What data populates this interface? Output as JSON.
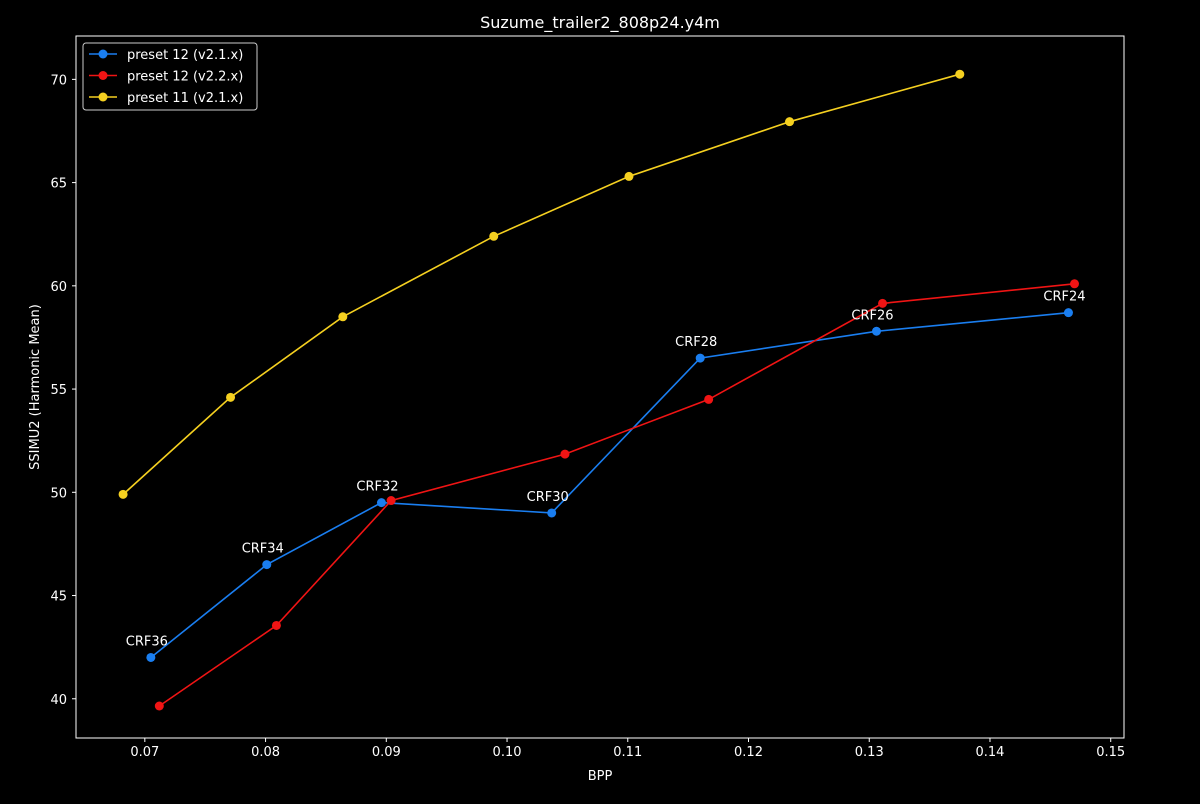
{
  "chart_data": {
    "type": "line",
    "title": "Suzume_trailer2_808p24.y4m",
    "xlabel": "BPP",
    "ylabel": "SSIMU2 (Harmonic Mean)",
    "xlim": [
      0.0643,
      0.1511
    ],
    "ylim": [
      38.1,
      72.1
    ],
    "xticks": [
      0.07,
      0.08,
      0.09,
      0.1,
      0.11,
      0.12,
      0.13,
      0.14,
      0.15
    ],
    "xtick_labels": [
      "0.07",
      "0.08",
      "0.09",
      "0.10",
      "0.11",
      "0.12",
      "0.13",
      "0.14",
      "0.15"
    ],
    "yticks": [
      40,
      45,
      50,
      55,
      60,
      65,
      70
    ],
    "ytick_labels": [
      "40",
      "45",
      "50",
      "55",
      "60",
      "65",
      "70"
    ],
    "grid": false,
    "legend_position": "top-left",
    "background": "#000000",
    "series": [
      {
        "name": "preset 12 (v2.1.x)",
        "color": "#1a7ef0",
        "x": [
          0.0705,
          0.0801,
          0.0896,
          0.1037,
          0.116,
          0.1306,
          0.1465
        ],
        "y": [
          42.0,
          46.5,
          49.5,
          49.0,
          56.5,
          57.8,
          58.7
        ]
      },
      {
        "name": "preset 12 (v2.2.x)",
        "color": "#f01414",
        "x": [
          0.0712,
          0.0809,
          0.0904,
          0.1048,
          0.1167,
          0.1311,
          0.147
        ],
        "y": [
          39.65,
          43.55,
          49.6,
          51.85,
          54.5,
          59.15,
          60.1
        ]
      },
      {
        "name": "preset 11 (v2.1.x)",
        "color": "#f5d020",
        "x": [
          0.0682,
          0.0771,
          0.0864,
          0.0989,
          0.1101,
          0.1234,
          0.1375
        ],
        "y": [
          49.9,
          54.6,
          58.5,
          62.4,
          65.3,
          67.95,
          70.25
        ]
      }
    ],
    "annotations": [
      {
        "text": "CRF36",
        "x": 0.0705,
        "y": 42.0
      },
      {
        "text": "CRF34",
        "x": 0.0801,
        "y": 46.5
      },
      {
        "text": "CRF32",
        "x": 0.0896,
        "y": 49.5
      },
      {
        "text": "CRF30",
        "x": 0.1037,
        "y": 49.0
      },
      {
        "text": "CRF28",
        "x": 0.116,
        "y": 56.5
      },
      {
        "text": "CRF26",
        "x": 0.1306,
        "y": 57.8
      },
      {
        "text": "CRF24",
        "x": 0.1465,
        "y": 58.7
      }
    ]
  }
}
